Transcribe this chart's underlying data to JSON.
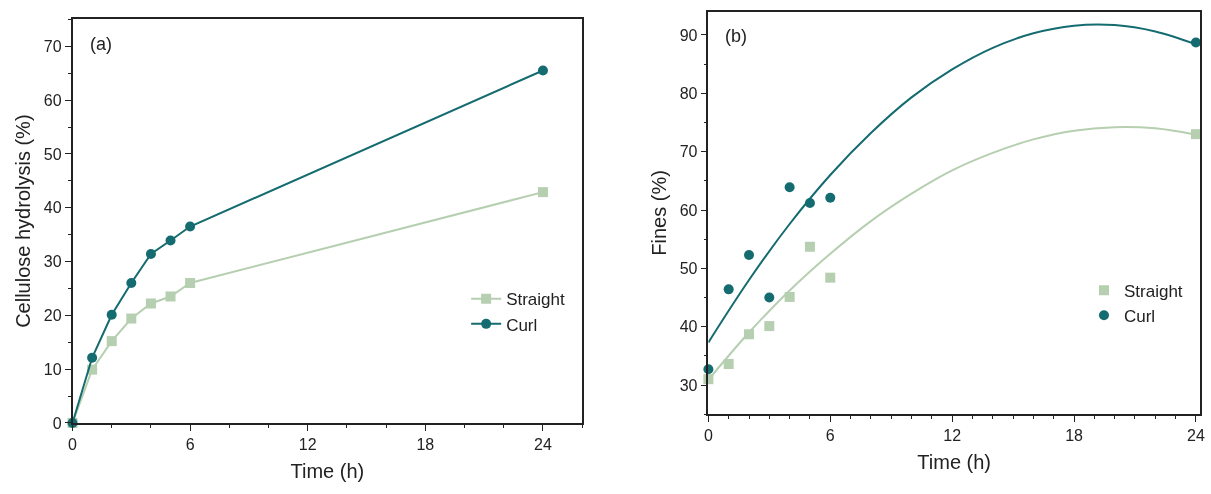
{
  "chart_data": [
    {
      "type": "line",
      "title": "(a)",
      "xlabel": "Time (h)",
      "ylabel": "Cellulose hydrolysis (%)",
      "x": [
        0,
        1,
        2,
        3,
        4,
        5,
        6,
        24
      ],
      "series": [
        {
          "name": "Straight",
          "color": "#b5cfb0",
          "marker": "square",
          "values": [
            0,
            9.9,
            15.2,
            19.4,
            22.2,
            23.5,
            26.0,
            42.9
          ]
        },
        {
          "name": "Curl",
          "color": "#146b70",
          "marker": "circle",
          "values": [
            0,
            12.1,
            20.1,
            26.0,
            31.4,
            33.9,
            36.5,
            65.5
          ]
        }
      ],
      "xlim": [
        0,
        26
      ],
      "xticks": [
        0,
        6,
        12,
        18,
        24
      ],
      "ylim": [
        0,
        75
      ],
      "yticks": [
        0,
        10,
        20,
        30,
        40,
        50,
        60,
        70
      ],
      "legend": "bottom right",
      "line_style": "solid"
    },
    {
      "type": "scatter",
      "title": "(b)",
      "xlabel": "Time (h)",
      "ylabel": "Fines (%)",
      "x": [
        0,
        1,
        2,
        3,
        4,
        5,
        6,
        24
      ],
      "series": [
        {
          "name": "Straight",
          "color": "#b5cfb0",
          "marker": "square",
          "values": [
            31.0,
            33.6,
            38.7,
            40.1,
            45.1,
            53.7,
            48.4,
            73.0
          ]
        },
        {
          "name": "Curl",
          "color": "#146b70",
          "marker": "circle",
          "values": [
            32.7,
            46.4,
            52.3,
            45.0,
            63.9,
            61.2,
            62.1,
            88.7
          ]
        },
        {
          "type": "line",
          "color": "#b5cfb0",
          "marker": "none",
          "x": [
            0,
            2,
            4,
            6,
            8,
            10,
            12,
            14,
            16,
            18,
            20,
            22,
            24
          ],
          "values": [
            30.9,
            39.0,
            46.2,
            52.5,
            58.1,
            62.8,
            66.8,
            69.8,
            72.1,
            73.6,
            74.2,
            74.0,
            72.9
          ]
        },
        {
          "type": "line",
          "color": "#146b70",
          "marker": "none",
          "x": [
            0,
            2,
            4,
            6,
            8,
            10,
            12,
            14,
            16,
            18,
            20,
            22,
            24
          ],
          "values": [
            37.3,
            48.0,
            57.6,
            66.0,
            73.2,
            79.3,
            84.1,
            87.8,
            90.3,
            91.6,
            91.7,
            90.6,
            88.4
          ]
        }
      ],
      "xlim": [
        0,
        24.2
      ],
      "xticks": [
        0,
        6,
        12,
        18,
        24
      ],
      "ylim": [
        25,
        94
      ],
      "yticks": [
        30,
        40,
        50,
        60,
        70,
        80,
        90
      ],
      "legend": "bottom right",
      "line_style": "solid"
    }
  ]
}
